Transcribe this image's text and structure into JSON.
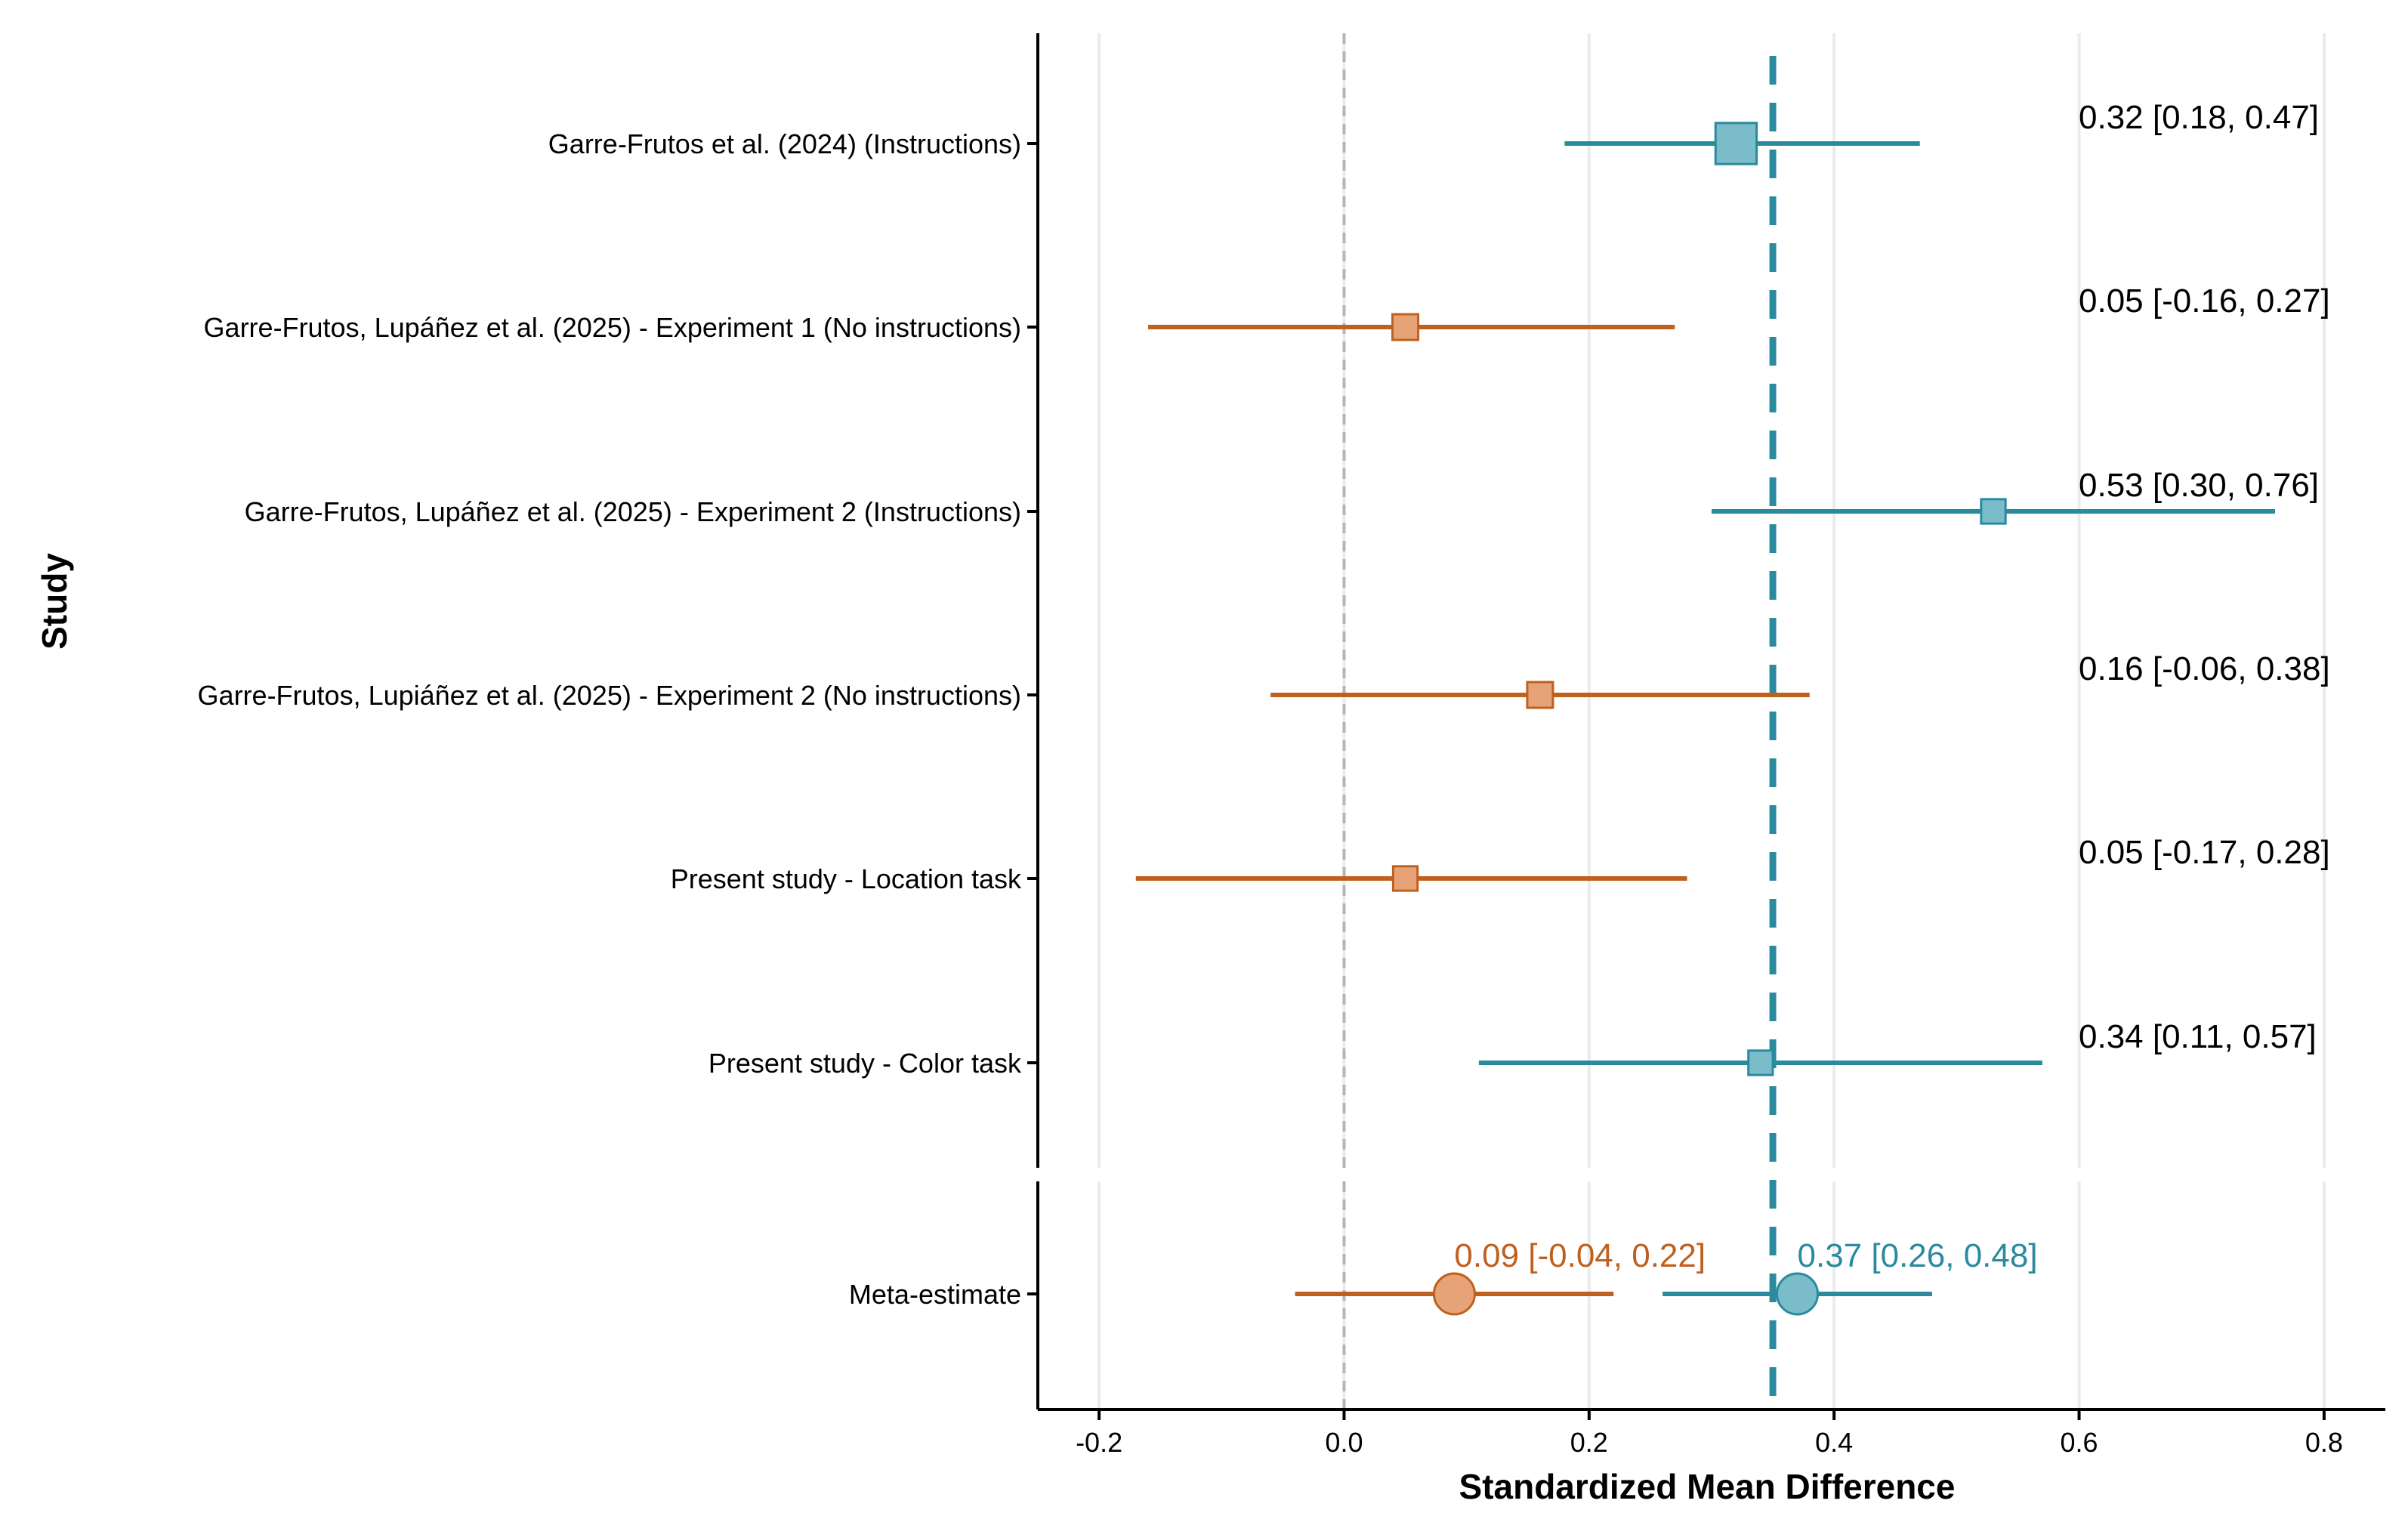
{
  "chart_data": {
    "type": "scatter",
    "subtype": "forest-plot",
    "xlabel": "Standardized Mean Difference",
    "ylabel": "Study",
    "xlim": [
      -0.25,
      0.85
    ],
    "x_ticks": [
      -0.2,
      0.0,
      0.2,
      0.4,
      0.6,
      0.8
    ],
    "x_tick_labels": [
      "-0.2",
      "0.0",
      "0.2",
      "0.4",
      "0.6",
      "0.8"
    ],
    "grid": "vertical major gridlines",
    "reference_line": 0.0,
    "pooled_line": 0.35,
    "groups": {
      "instructions": {
        "color": "#2a8a9e",
        "fill": "#7bbccb"
      },
      "no_instructions": {
        "color": "#c0601e",
        "fill": "#e6a378"
      }
    },
    "studies": [
      {
        "label": "Garre-Frutos et al. (2024) (Instructions)",
        "group": "instructions",
        "estimate": 0.32,
        "lower": 0.18,
        "upper": 0.47,
        "ci_text": "0.32 [0.18, 0.47]",
        "weight": 1.6
      },
      {
        "label": "Garre-Frutos, Lupáñez et al. (2025) - Experiment 1 (No instructions)",
        "group": "no_instructions",
        "estimate": 0.05,
        "lower": -0.16,
        "upper": 0.27,
        "ci_text": "0.05 [-0.16, 0.27]",
        "weight": 1.0
      },
      {
        "label": "Garre-Frutos, Lupáñez et al. (2025) - Experiment 2 (Instructions)",
        "group": "instructions",
        "estimate": 0.53,
        "lower": 0.3,
        "upper": 0.76,
        "ci_text": "0.53 [0.30, 0.76]",
        "weight": 0.95
      },
      {
        "label": "Garre-Frutos, Lupiáñez et al. (2025) - Experiment 2 (No instructions)",
        "group": "no_instructions",
        "estimate": 0.16,
        "lower": -0.06,
        "upper": 0.38,
        "ci_text": "0.16 [-0.06, 0.38]",
        "weight": 1.0
      },
      {
        "label": "Present study - Location task",
        "group": "no_instructions",
        "estimate": 0.05,
        "lower": -0.17,
        "upper": 0.28,
        "ci_text": "0.05 [-0.17, 0.28]",
        "weight": 0.95
      },
      {
        "label": "Present study - Color task",
        "group": "instructions",
        "estimate": 0.34,
        "lower": 0.11,
        "upper": 0.57,
        "ci_text": "0.34 [0.11, 0.57]",
        "weight": 0.95
      }
    ],
    "meta": {
      "label": "Meta-estimate",
      "estimates": [
        {
          "group": "no_instructions",
          "estimate": 0.09,
          "lower": -0.04,
          "upper": 0.22,
          "ci_text": "0.09 [-0.04, 0.22]"
        },
        {
          "group": "instructions",
          "estimate": 0.37,
          "lower": 0.26,
          "upper": 0.48,
          "ci_text": "0.37 [0.26, 0.48]"
        }
      ]
    }
  }
}
